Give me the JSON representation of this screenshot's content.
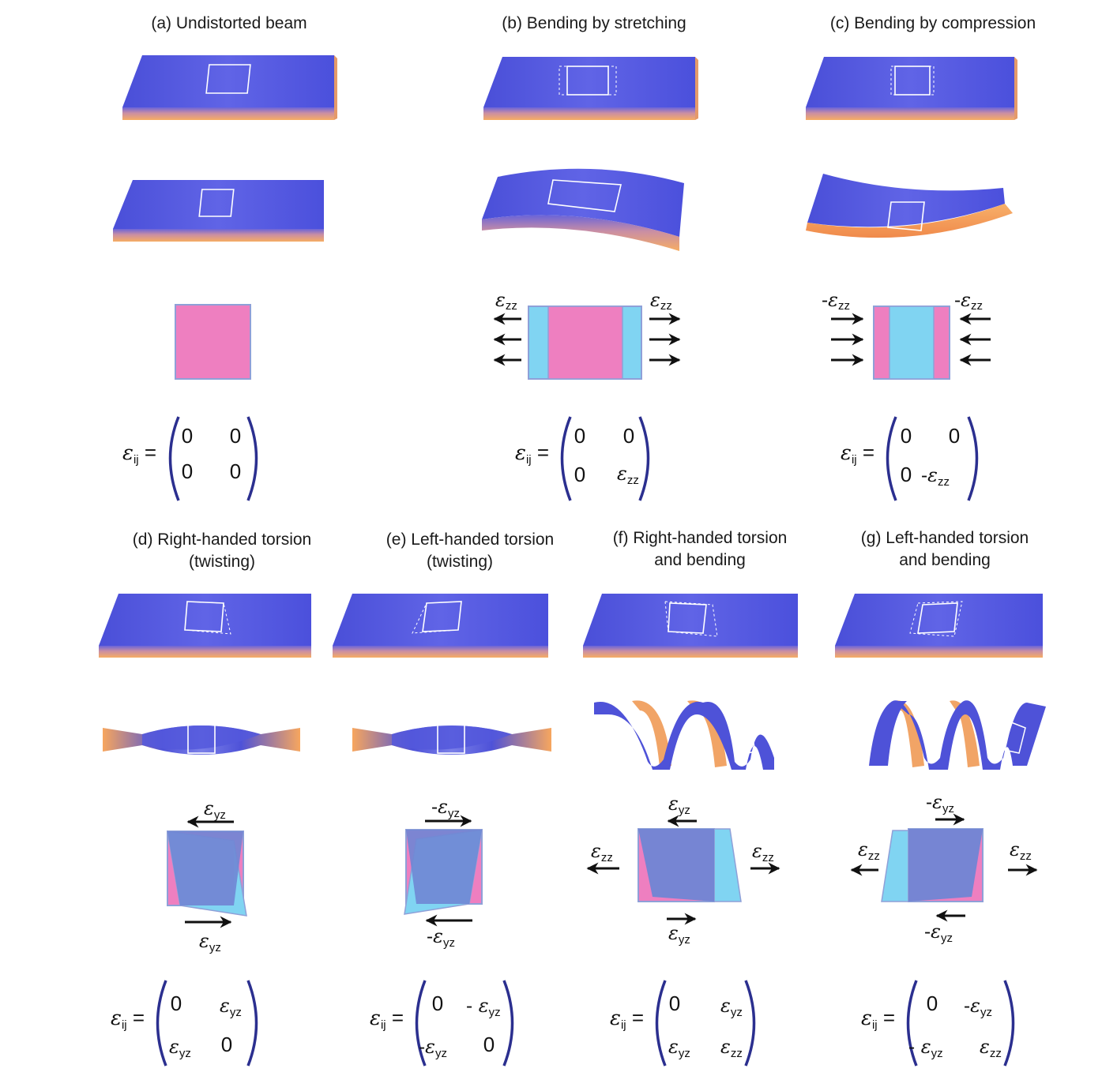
{
  "panels": [
    {
      "id": "a",
      "title_lines": [
        "(a) Undistorted beam"
      ],
      "matrix": {
        "m11": "0",
        "m12": "0",
        "m21": "0",
        "m22": "0"
      }
    },
    {
      "id": "b",
      "title_lines": [
        "(b) Bending by stretching"
      ],
      "arrow_label_left": "ε_zz",
      "arrow_label_right": "ε_zz",
      "matrix": {
        "m11": "0",
        "m12": "0",
        "m21": "0",
        "m22": "ε_zz"
      }
    },
    {
      "id": "c",
      "title_lines": [
        "(c) Bending by compression"
      ],
      "arrow_label_left": "-ε_zz",
      "arrow_label_right": "-ε_zz",
      "matrix": {
        "m11": "0",
        "m12": "0",
        "m21": "0",
        "m22": "-ε_zz"
      }
    },
    {
      "id": "d",
      "title_lines": [
        "(d) Right-handed torsion",
        "(twisting)"
      ],
      "arrow_label_top": "ε_yz",
      "arrow_label_bottom": "ε_yz",
      "matrix": {
        "m11": "0",
        "m12": "ε_yz",
        "m21": "ε_yz",
        "m22": "0"
      }
    },
    {
      "id": "e",
      "title_lines": [
        "(e) Left-handed torsion",
        "(twisting)"
      ],
      "arrow_label_top": "-ε_yz",
      "arrow_label_bottom": "-ε_yz",
      "matrix": {
        "m11": "0",
        "m12": "-ε_yz",
        "m21": "-ε_yz",
        "m22": "0"
      }
    },
    {
      "id": "f",
      "title_lines": [
        "(f) Right-handed torsion",
        "and bending"
      ],
      "arrow_label_top": "ε_yz",
      "arrow_label_bottom": "ε_yz",
      "arrow_label_left": "ε_zz",
      "arrow_label_right": "ε_zz",
      "matrix": {
        "m11": "0",
        "m12": "ε_yz",
        "m21": "ε_yz",
        "m22": "ε_zz"
      }
    },
    {
      "id": "g",
      "title_lines": [
        "(g) Left-handed torsion",
        "and bending"
      ],
      "arrow_label_top": "-ε_yz",
      "arrow_label_bottom": "-ε_yz",
      "arrow_label_left": "ε_zz",
      "arrow_label_right": "ε_zz",
      "matrix": {
        "m11": "0",
        "m12": "-ε_yz",
        "m21": "-ε_yz",
        "m22": "ε_zz"
      }
    }
  ],
  "tensor_label": "ε_ij =",
  "colors": {
    "beam_top": "#4f55dd",
    "beam_side": "#f5a866",
    "pink": "#ee7fc0",
    "cyan": "#80d4f2",
    "overlay": "#6f86d4",
    "matrix_bracket": "#2b2f8f",
    "arrow": "#111111"
  }
}
